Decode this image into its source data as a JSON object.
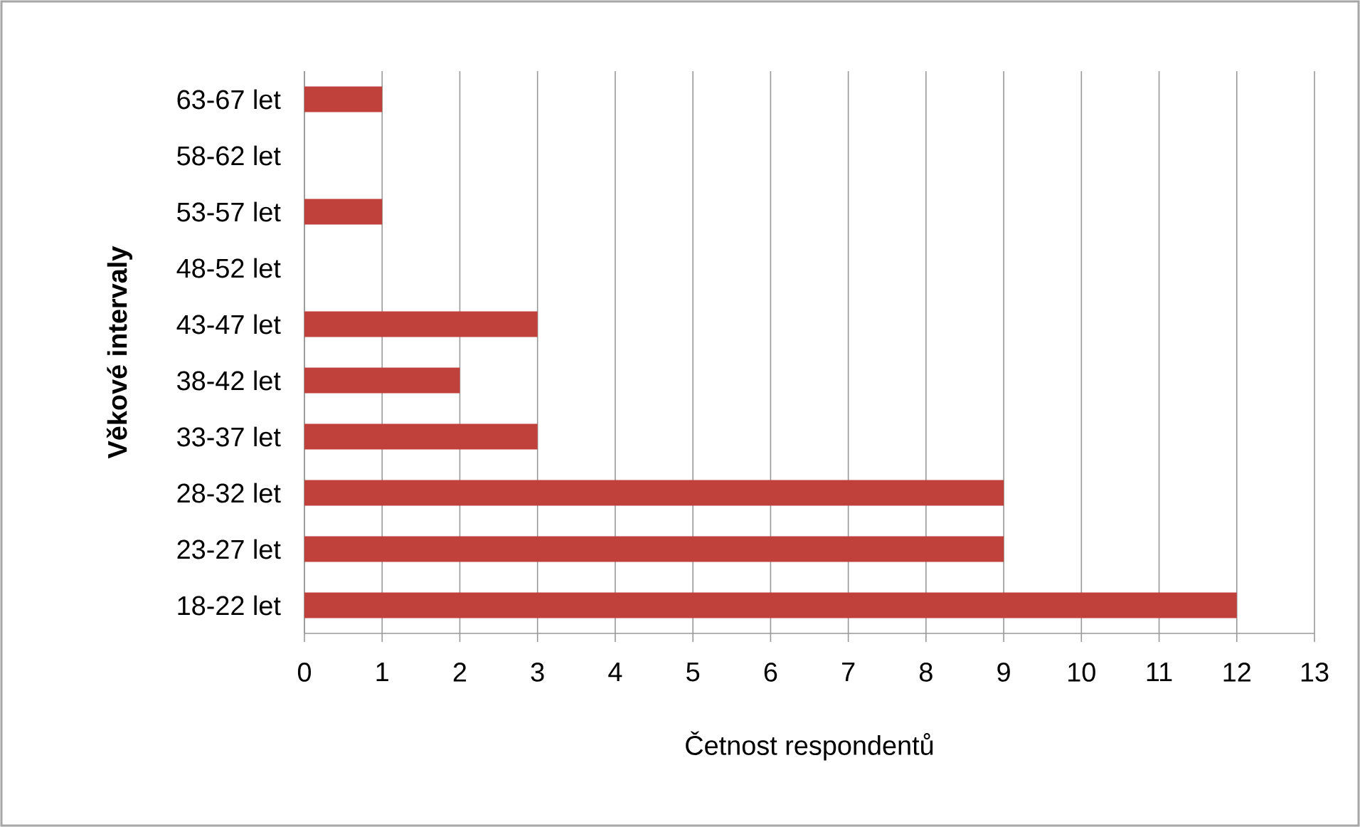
{
  "chart_data": {
    "type": "bar",
    "orientation": "horizontal",
    "xlabel": "Četnost respondentů",
    "ylabel": "Věkové intervaly",
    "categories": [
      "63-67 let",
      "58-62 let",
      "53-57 let",
      "48-52 let",
      "43-47 let",
      "38-42 let",
      "33-37 let",
      "28-32 let",
      "23-27 let",
      "18-22 let"
    ],
    "values": [
      1,
      0,
      1,
      0,
      3,
      2,
      3,
      9,
      9,
      12
    ],
    "color": "#c0403c",
    "xlim": [
      0,
      13
    ],
    "xticks": [
      0,
      1,
      2,
      3,
      4,
      5,
      6,
      7,
      8,
      9,
      10,
      11,
      12,
      13
    ],
    "grid": "x"
  }
}
